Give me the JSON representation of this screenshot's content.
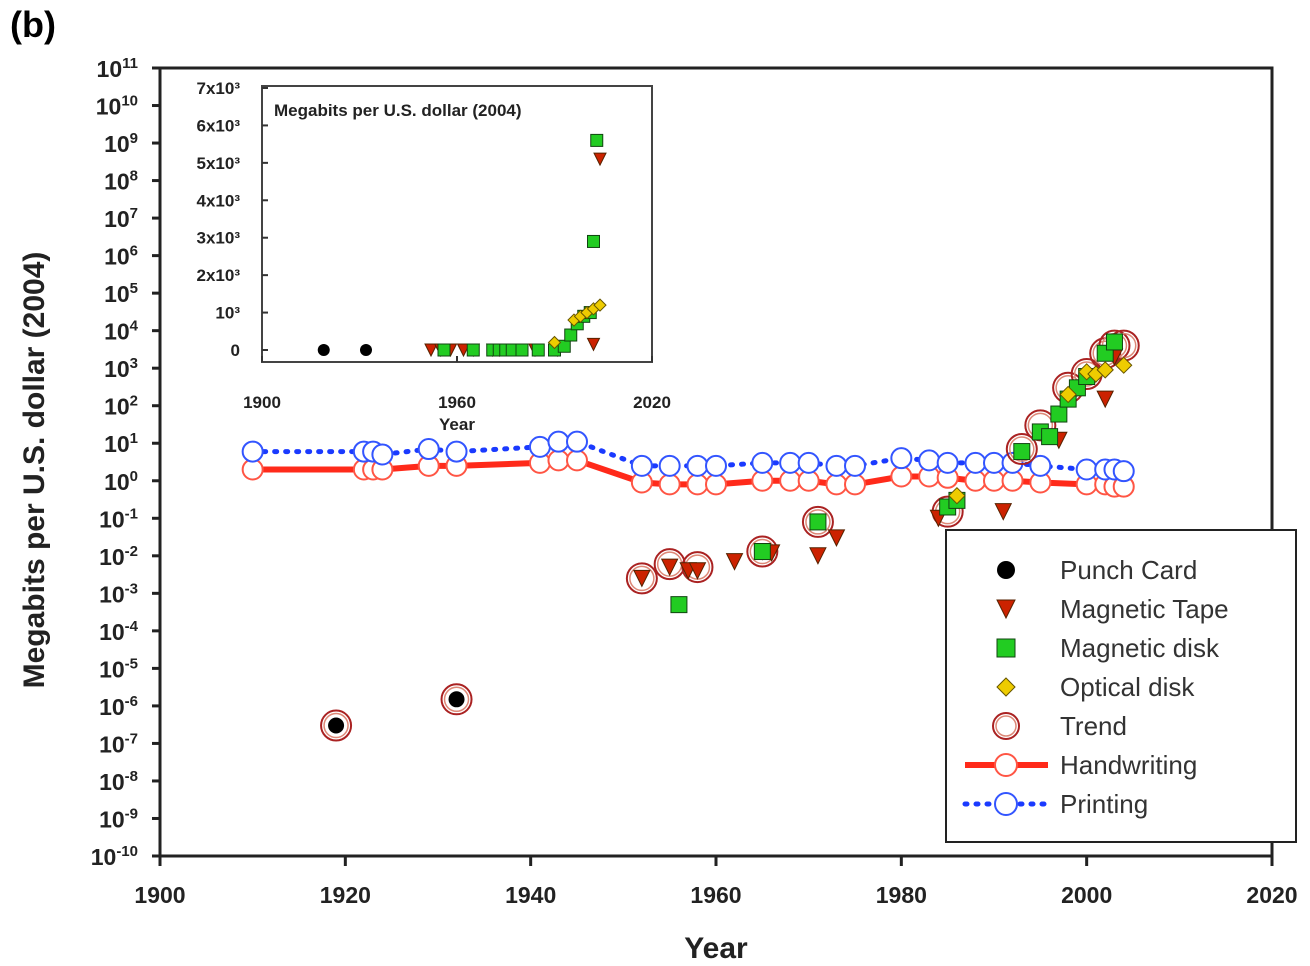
{
  "panel_label": "(b)",
  "chart_data": [
    {
      "type": "scatter",
      "xlabel": "Year",
      "ylabel": "Megabits per U.S. dollar (2004)",
      "xlim": [
        1900,
        2020
      ],
      "ylim_log10": [
        -10,
        11
      ],
      "y_scale": "log",
      "x_ticks": [
        "1900",
        "1920",
        "1940",
        "1960",
        "1980",
        "2000",
        "2020"
      ],
      "y_tick_exponents": [
        "11",
        "10",
        "9",
        "8",
        "7",
        "6",
        "5",
        "4",
        "3",
        "2",
        "1",
        "0",
        "-1",
        "-2",
        "-3",
        "-4",
        "-5",
        "-6",
        "-7",
        "-8",
        "-9",
        "-10"
      ],
      "legend_position": "lower-right",
      "series": [
        {
          "name": "Punch Card",
          "color": "#000000",
          "marker": "circle",
          "points": [
            [
              1919,
              3e-07
            ],
            [
              1932,
              1.5e-06
            ]
          ]
        },
        {
          "name": "Magnetic Tape",
          "color": "#cc2200",
          "marker": "triangle-down",
          "points": [
            [
              1952,
              0.0025
            ],
            [
              1955,
              0.005
            ],
            [
              1957,
              0.004
            ],
            [
              1958,
              0.004
            ],
            [
              1962,
              0.007
            ],
            [
              1965,
              0.013
            ],
            [
              1966,
              0.012
            ],
            [
              1971,
              0.01
            ],
            [
              1973,
              0.03
            ],
            [
              1984,
              0.1
            ],
            [
              1991,
              0.15
            ],
            [
              1997,
              12
            ],
            [
              2002,
              150
            ],
            [
              2003,
              2000
            ]
          ]
        },
        {
          "name": "Magnetic disk",
          "color": "#22cc22",
          "marker": "square",
          "points": [
            [
              1956,
              0.0005
            ],
            [
              1965,
              0.013
            ],
            [
              1971,
              0.08
            ],
            [
              1985,
              0.2
            ],
            [
              1986,
              0.3
            ],
            [
              1993,
              6
            ],
            [
              1995,
              20
            ],
            [
              1996,
              15
            ],
            [
              1997,
              60
            ],
            [
              1998,
              150
            ],
            [
              1999,
              300
            ],
            [
              2000,
              600
            ],
            [
              2002,
              2500
            ],
            [
              2003,
              5000
            ]
          ]
        },
        {
          "name": "Optical disk",
          "color": "#eecc00",
          "marker": "diamond",
          "points": [
            [
              1986,
              0.4
            ],
            [
              1998,
              200
            ],
            [
              2000,
              800
            ],
            [
              2001,
              700
            ],
            [
              2002,
              900
            ],
            [
              2004,
              1200
            ]
          ]
        },
        {
          "name": "Trend",
          "color": "#aa2222",
          "marker": "open-circle",
          "points": [
            [
              1919,
              3e-07
            ],
            [
              1932,
              1.5e-06
            ],
            [
              1952,
              0.0025
            ],
            [
              1955,
              0.006
            ],
            [
              1958,
              0.005
            ],
            [
              1965,
              0.013
            ],
            [
              1971,
              0.08
            ],
            [
              1985,
              0.15
            ],
            [
              1993,
              7
            ],
            [
              1995,
              30
            ],
            [
              1998,
              300
            ],
            [
              2000,
              700
            ],
            [
              2002,
              2500
            ],
            [
              2003,
              4000
            ],
            [
              2004,
              4000
            ]
          ]
        },
        {
          "name": "Handwriting",
          "color": "#ff2a1a",
          "marker": "line-open-circle",
          "points": [
            [
              1910,
              2
            ],
            [
              1922,
              2
            ],
            [
              1923,
              2
            ],
            [
              1924,
              2
            ],
            [
              1929,
              2.5
            ],
            [
              1932,
              2.5
            ],
            [
              1941,
              3
            ],
            [
              1943,
              3.5
            ],
            [
              1945,
              3.5
            ],
            [
              1952,
              0.9
            ],
            [
              1955,
              0.8
            ],
            [
              1958,
              0.8
            ],
            [
              1960,
              0.8
            ],
            [
              1965,
              1
            ],
            [
              1968,
              1
            ],
            [
              1970,
              1
            ],
            [
              1973,
              0.8
            ],
            [
              1975,
              0.8
            ],
            [
              1980,
              1.3
            ],
            [
              1983,
              1.3
            ],
            [
              1985,
              1.2
            ],
            [
              1988,
              1
            ],
            [
              1990,
              1
            ],
            [
              1992,
              1
            ],
            [
              1995,
              0.9
            ],
            [
              2000,
              0.8
            ],
            [
              2002,
              0.8
            ],
            [
              2003,
              0.7
            ],
            [
              2004,
              0.7
            ]
          ]
        },
        {
          "name": "Printing",
          "color": "#1a3aff",
          "marker": "dotted-open-circle",
          "points": [
            [
              1910,
              6
            ],
            [
              1922,
              6
            ],
            [
              1923,
              6
            ],
            [
              1924,
              5
            ],
            [
              1929,
              7
            ],
            [
              1932,
              6
            ],
            [
              1941,
              8
            ],
            [
              1943,
              11
            ],
            [
              1945,
              11
            ],
            [
              1952,
              2.5
            ],
            [
              1955,
              2.5
            ],
            [
              1958,
              2.5
            ],
            [
              1960,
              2.5
            ],
            [
              1965,
              3
            ],
            [
              1968,
              3
            ],
            [
              1970,
              3
            ],
            [
              1973,
              2.5
            ],
            [
              1975,
              2.5
            ],
            [
              1980,
              4
            ],
            [
              1983,
              3.5
            ],
            [
              1985,
              3
            ],
            [
              1988,
              3
            ],
            [
              1990,
              3
            ],
            [
              1992,
              3
            ],
            [
              1995,
              2.5
            ],
            [
              2000,
              2
            ],
            [
              2002,
              2
            ],
            [
              2003,
              2
            ],
            [
              2004,
              1.8
            ]
          ]
        }
      ]
    },
    {
      "type": "scatter",
      "title": "Megabits per U.S. dollar (2004)",
      "xlabel": "Year",
      "xlim": [
        1900,
        2020
      ],
      "ylim": [
        0,
        7000
      ],
      "x_ticks": [
        "1900",
        "1960",
        "2020"
      ],
      "y_ticks": [
        "0",
        "10³",
        "2x10³",
        "3x10³",
        "4x10³",
        "5x10³",
        "6x10³",
        "7x10³"
      ],
      "series": [
        {
          "name": "Punch Card",
          "points": [
            [
              1919,
              0
            ],
            [
              1932,
              0
            ]
          ]
        },
        {
          "name": "Magnetic Tape",
          "points": [
            [
              1952,
              0
            ],
            [
              1955,
              0
            ],
            [
              1958,
              0
            ],
            [
              1962,
              0
            ],
            [
              1965,
              0
            ],
            [
              1971,
              0
            ],
            [
              1973,
              0
            ],
            [
              1984,
              0
            ],
            [
              1991,
              0
            ],
            [
              2002,
              150
            ],
            [
              2004,
              5100
            ]
          ]
        },
        {
          "name": "Magnetic disk",
          "points": [
            [
              1956,
              0
            ],
            [
              1965,
              0
            ],
            [
              1971,
              0
            ],
            [
              1973,
              0
            ],
            [
              1975,
              0
            ],
            [
              1977,
              0
            ],
            [
              1980,
              0
            ],
            [
              1985,
              0
            ],
            [
              1990,
              0
            ],
            [
              1993,
              100
            ],
            [
              1995,
              400
            ],
            [
              1997,
              700
            ],
            [
              1999,
              900
            ],
            [
              2001,
              1000
            ],
            [
              2002,
              2900
            ],
            [
              2003,
              5600
            ]
          ]
        },
        {
          "name": "Optical disk",
          "points": [
            [
              1990,
              200
            ],
            [
              1996,
              800
            ],
            [
              1998,
              900
            ],
            [
              2000,
              1000
            ],
            [
              2002,
              1100
            ],
            [
              2004,
              1200
            ]
          ]
        }
      ]
    }
  ]
}
